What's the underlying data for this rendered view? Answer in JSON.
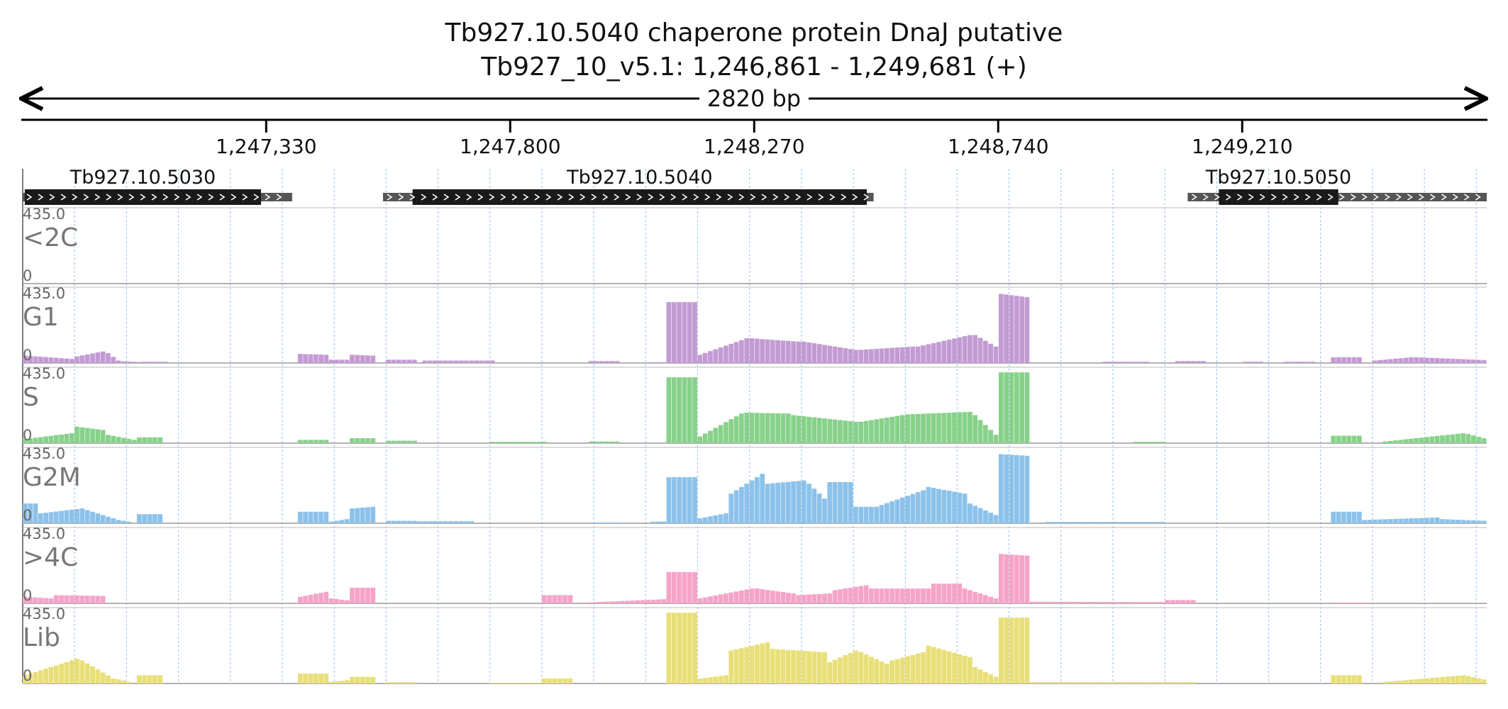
{
  "header": {
    "title": "Tb927.10.5040  chaperone protein DnaJ  putative",
    "location": "Tb927_10_v5.1: 1,246,861 - 1,249,681 (+)",
    "span_label": "2820 bp"
  },
  "axis": {
    "start": 1246861,
    "end": 1249681,
    "ticks": [
      {
        "value": 1247330,
        "label": "1,247,330"
      },
      {
        "value": 1247800,
        "label": "1,247,800"
      },
      {
        "value": 1248270,
        "label": "1,248,270"
      },
      {
        "value": 1248740,
        "label": "1,248,740"
      },
      {
        "value": 1249210,
        "label": "1,249,210"
      }
    ]
  },
  "genes": [
    {
      "name": "Tb927.10.5030",
      "utr": [
        1246861,
        1247380
      ],
      "cds": [
        1246865,
        1247320
      ],
      "strand": "+"
    },
    {
      "name": "Tb927.10.5040",
      "utr": [
        1247555,
        1248500
      ],
      "cds": [
        1247612,
        1248487
      ],
      "strand": "+"
    },
    {
      "name": "Tb927.10.5050",
      "utr": [
        1249105,
        1249681
      ],
      "cds": [
        1249165,
        1249395
      ],
      "strand": "+"
    }
  ],
  "colors": {
    "<2C": "#c8a2c8",
    "G1": "#c39bd3",
    "S": "#88d18a",
    "G2M": "#8cc2ea",
    "4C": "#f5a3c7",
    "Lib": "#e8df78",
    "gene": "#1a1a1a",
    "utr": "#555555",
    "grid": "#a9c7ea"
  },
  "chart_data": {
    "type": "area",
    "x_unit": "bp",
    "ylim": [
      0,
      435.0
    ],
    "bin_bp": 10,
    "tracks": [
      {
        "name": "<2C",
        "ymax_label": "435.0",
        "ymin_label": "0",
        "segments": []
      },
      {
        "name": "G1",
        "ymax_label": "435.0",
        "ymin_label": "0",
        "segments": [
          {
            "x0": 1246861,
            "x1": 1246961,
            "y0": 45,
            "y1": 25
          },
          {
            "x0": 1246961,
            "x1": 1247021,
            "y0": 40,
            "y1": 70
          },
          {
            "x0": 1247021,
            "x1": 1247051,
            "y0": 60,
            "y1": 15
          },
          {
            "x0": 1247051,
            "x1": 1247101,
            "y0": 10,
            "y1": 5
          },
          {
            "x0": 1247091,
            "x1": 1247141,
            "y0": 8,
            "y1": 8
          },
          {
            "x0": 1247391,
            "x1": 1247451,
            "y0": 55,
            "y1": 50
          },
          {
            "x0": 1247451,
            "x1": 1247491,
            "y0": 20,
            "y1": 20
          },
          {
            "x0": 1247491,
            "x1": 1247541,
            "y0": 50,
            "y1": 45
          },
          {
            "x0": 1247561,
            "x1": 1247621,
            "y0": 20,
            "y1": 20
          },
          {
            "x0": 1247631,
            "x1": 1247771,
            "y0": 15,
            "y1": 15
          },
          {
            "x0": 1247951,
            "x1": 1248011,
            "y0": 12,
            "y1": 12
          },
          {
            "x0": 1248071,
            "x1": 1248101,
            "y0": 5,
            "y1": 5
          },
          {
            "x0": 1248101,
            "x1": 1248161,
            "y0": 370,
            "y1": 370
          },
          {
            "x0": 1248161,
            "x1": 1248261,
            "y0": 50,
            "y1": 150
          },
          {
            "x0": 1248261,
            "x1": 1248361,
            "y0": 150,
            "y1": 130
          },
          {
            "x0": 1248361,
            "x1": 1248471,
            "y0": 130,
            "y1": 80
          },
          {
            "x0": 1248471,
            "x1": 1248581,
            "y0": 80,
            "y1": 100
          },
          {
            "x0": 1248581,
            "x1": 1248691,
            "y0": 100,
            "y1": 170
          },
          {
            "x0": 1248691,
            "x1": 1248741,
            "y0": 170,
            "y1": 100
          },
          {
            "x0": 1248741,
            "x1": 1248801,
            "y0": 420,
            "y1": 400
          },
          {
            "x0": 1248941,
            "x1": 1249031,
            "y0": 8,
            "y1": 8
          },
          {
            "x0": 1249081,
            "x1": 1249141,
            "y0": 12,
            "y1": 12
          },
          {
            "x0": 1249211,
            "x1": 1249251,
            "y0": 8,
            "y1": 8
          },
          {
            "x0": 1249291,
            "x1": 1249351,
            "y0": 8,
            "y1": 8
          },
          {
            "x0": 1249381,
            "x1": 1249441,
            "y0": 35,
            "y1": 35
          },
          {
            "x0": 1249461,
            "x1": 1249541,
            "y0": 15,
            "y1": 35
          },
          {
            "x0": 1249541,
            "x1": 1249681,
            "y0": 35,
            "y1": 18
          }
        ]
      },
      {
        "name": "S",
        "ymax_label": "435.0",
        "ymin_label": "0",
        "segments": [
          {
            "x0": 1246861,
            "x1": 1246961,
            "y0": 25,
            "y1": 60
          },
          {
            "x0": 1246961,
            "x1": 1247021,
            "y0": 100,
            "y1": 80
          },
          {
            "x0": 1247021,
            "x1": 1247081,
            "y0": 50,
            "y1": 20
          },
          {
            "x0": 1247081,
            "x1": 1247131,
            "y0": 35,
            "y1": 35
          },
          {
            "x0": 1247391,
            "x1": 1247451,
            "y0": 20,
            "y1": 20
          },
          {
            "x0": 1247491,
            "x1": 1247541,
            "y0": 30,
            "y1": 30
          },
          {
            "x0": 1247561,
            "x1": 1247621,
            "y0": 15,
            "y1": 15
          },
          {
            "x0": 1247761,
            "x1": 1247871,
            "y0": 8,
            "y1": 8
          },
          {
            "x0": 1247951,
            "x1": 1248011,
            "y0": 10,
            "y1": 10
          },
          {
            "x0": 1248101,
            "x1": 1248161,
            "y0": 400,
            "y1": 400
          },
          {
            "x0": 1248161,
            "x1": 1248251,
            "y0": 40,
            "y1": 180
          },
          {
            "x0": 1248251,
            "x1": 1248341,
            "y0": 185,
            "y1": 180
          },
          {
            "x0": 1248341,
            "x1": 1248471,
            "y0": 170,
            "y1": 130
          },
          {
            "x0": 1248471,
            "x1": 1248561,
            "y0": 130,
            "y1": 170
          },
          {
            "x0": 1248561,
            "x1": 1248691,
            "y0": 175,
            "y1": 190
          },
          {
            "x0": 1248691,
            "x1": 1248741,
            "y0": 170,
            "y1": 50
          },
          {
            "x0": 1248741,
            "x1": 1248801,
            "y0": 430,
            "y1": 430
          },
          {
            "x0": 1249001,
            "x1": 1249061,
            "y0": 8,
            "y1": 8
          },
          {
            "x0": 1249381,
            "x1": 1249441,
            "y0": 45,
            "y1": 45
          },
          {
            "x0": 1249481,
            "x1": 1249641,
            "y0": 10,
            "y1": 60
          },
          {
            "x0": 1249641,
            "x1": 1249681,
            "y0": 55,
            "y1": 30
          }
        ]
      },
      {
        "name": "G2M",
        "ymax_label": "435.0",
        "ymin_label": "0",
        "segments": [
          {
            "x0": 1246861,
            "x1": 1246891,
            "y0": 120,
            "y1": 120
          },
          {
            "x0": 1246891,
            "x1": 1246981,
            "y0": 60,
            "y1": 90
          },
          {
            "x0": 1246981,
            "x1": 1247041,
            "y0": 80,
            "y1": 30
          },
          {
            "x0": 1247041,
            "x1": 1247071,
            "y0": 20,
            "y1": 10
          },
          {
            "x0": 1247081,
            "x1": 1247131,
            "y0": 55,
            "y1": 55
          },
          {
            "x0": 1247391,
            "x1": 1247451,
            "y0": 70,
            "y1": 70
          },
          {
            "x0": 1247451,
            "x1": 1247491,
            "y0": 10,
            "y1": 25
          },
          {
            "x0": 1247491,
            "x1": 1247541,
            "y0": 90,
            "y1": 100
          },
          {
            "x0": 1247561,
            "x1": 1247621,
            "y0": 15,
            "y1": 15
          },
          {
            "x0": 1247621,
            "x1": 1247731,
            "y0": 12,
            "y1": 12
          },
          {
            "x0": 1247961,
            "x1": 1248011,
            "y0": 5,
            "y1": 5
          },
          {
            "x0": 1248071,
            "x1": 1248101,
            "y0": 10,
            "y1": 10
          },
          {
            "x0": 1248101,
            "x1": 1248161,
            "y0": 280,
            "y1": 280
          },
          {
            "x0": 1248161,
            "x1": 1248221,
            "y0": 30,
            "y1": 60
          },
          {
            "x0": 1248221,
            "x1": 1248291,
            "y0": 180,
            "y1": 300
          },
          {
            "x0": 1248291,
            "x1": 1248371,
            "y0": 240,
            "y1": 260
          },
          {
            "x0": 1248371,
            "x1": 1248411,
            "y0": 240,
            "y1": 150
          },
          {
            "x0": 1248411,
            "x1": 1248461,
            "y0": 250,
            "y1": 250
          },
          {
            "x0": 1248461,
            "x1": 1248501,
            "y0": 100,
            "y1": 100
          },
          {
            "x0": 1248501,
            "x1": 1248601,
            "y0": 100,
            "y1": 200
          },
          {
            "x0": 1248601,
            "x1": 1248681,
            "y0": 220,
            "y1": 180
          },
          {
            "x0": 1248681,
            "x1": 1248741,
            "y0": 120,
            "y1": 50
          },
          {
            "x0": 1248741,
            "x1": 1248801,
            "y0": 420,
            "y1": 410
          },
          {
            "x0": 1248831,
            "x1": 1249061,
            "y0": 8,
            "y1": 8
          },
          {
            "x0": 1249381,
            "x1": 1249441,
            "y0": 70,
            "y1": 70
          },
          {
            "x0": 1249441,
            "x1": 1249591,
            "y0": 20,
            "y1": 35
          },
          {
            "x0": 1249591,
            "x1": 1249681,
            "y0": 25,
            "y1": 15
          }
        ]
      },
      {
        "name": ">4C",
        "ymax_label": "435.0",
        "ymin_label": "0",
        "segments": [
          {
            "x0": 1246861,
            "x1": 1246921,
            "y0": 40,
            "y1": 30
          },
          {
            "x0": 1246921,
            "x1": 1247021,
            "y0": 50,
            "y1": 45
          },
          {
            "x0": 1247391,
            "x1": 1247451,
            "y0": 40,
            "y1": 70
          },
          {
            "x0": 1247451,
            "x1": 1247501,
            "y0": 30,
            "y1": 15
          },
          {
            "x0": 1247491,
            "x1": 1247541,
            "y0": 95,
            "y1": 95
          },
          {
            "x0": 1247861,
            "x1": 1247921,
            "y0": 50,
            "y1": 50
          },
          {
            "x0": 1247941,
            "x1": 1248101,
            "y0": 5,
            "y1": 25
          },
          {
            "x0": 1248101,
            "x1": 1248161,
            "y0": 190,
            "y1": 190
          },
          {
            "x0": 1248161,
            "x1": 1248271,
            "y0": 30,
            "y1": 90
          },
          {
            "x0": 1248271,
            "x1": 1248351,
            "y0": 90,
            "y1": 60
          },
          {
            "x0": 1248351,
            "x1": 1248421,
            "y0": 50,
            "y1": 60
          },
          {
            "x0": 1248421,
            "x1": 1248491,
            "y0": 80,
            "y1": 110
          },
          {
            "x0": 1248491,
            "x1": 1248611,
            "y0": 90,
            "y1": 90
          },
          {
            "x0": 1248611,
            "x1": 1248671,
            "y0": 120,
            "y1": 120
          },
          {
            "x0": 1248671,
            "x1": 1248741,
            "y0": 90,
            "y1": 30
          },
          {
            "x0": 1248741,
            "x1": 1248801,
            "y0": 300,
            "y1": 290
          },
          {
            "x0": 1248801,
            "x1": 1249061,
            "y0": 10,
            "y1": 8
          },
          {
            "x0": 1249061,
            "x1": 1249121,
            "y0": 20,
            "y1": 20
          },
          {
            "x0": 1249391,
            "x1": 1249451,
            "y0": 5,
            "y1": 5
          }
        ]
      },
      {
        "name": "Lib",
        "ymax_label": "435.0",
        "ymin_label": "0",
        "segments": [
          {
            "x0": 1246861,
            "x1": 1246971,
            "y0": 50,
            "y1": 150
          },
          {
            "x0": 1246971,
            "x1": 1247041,
            "y0": 140,
            "y1": 30
          },
          {
            "x0": 1247041,
            "x1": 1247071,
            "y0": 25,
            "y1": 10
          },
          {
            "x0": 1247081,
            "x1": 1247131,
            "y0": 50,
            "y1": 50
          },
          {
            "x0": 1247391,
            "x1": 1247451,
            "y0": 60,
            "y1": 60
          },
          {
            "x0": 1247451,
            "x1": 1247491,
            "y0": 10,
            "y1": 20
          },
          {
            "x0": 1247491,
            "x1": 1247541,
            "y0": 40,
            "y1": 40
          },
          {
            "x0": 1247561,
            "x1": 1247621,
            "y0": 8,
            "y1": 8
          },
          {
            "x0": 1247761,
            "x1": 1247861,
            "y0": 5,
            "y1": 5
          },
          {
            "x0": 1247861,
            "x1": 1247921,
            "y0": 30,
            "y1": 30
          },
          {
            "x0": 1248101,
            "x1": 1248161,
            "y0": 430,
            "y1": 430
          },
          {
            "x0": 1248161,
            "x1": 1248221,
            "y0": 30,
            "y1": 50
          },
          {
            "x0": 1248221,
            "x1": 1248301,
            "y0": 200,
            "y1": 250
          },
          {
            "x0": 1248301,
            "x1": 1248411,
            "y0": 210,
            "y1": 190
          },
          {
            "x0": 1248411,
            "x1": 1248471,
            "y0": 130,
            "y1": 200
          },
          {
            "x0": 1248471,
            "x1": 1248531,
            "y0": 190,
            "y1": 120
          },
          {
            "x0": 1248531,
            "x1": 1248601,
            "y0": 140,
            "y1": 190
          },
          {
            "x0": 1248601,
            "x1": 1248691,
            "y0": 230,
            "y1": 160
          },
          {
            "x0": 1248691,
            "x1": 1248741,
            "y0": 100,
            "y1": 40
          },
          {
            "x0": 1248741,
            "x1": 1248801,
            "y0": 400,
            "y1": 400
          },
          {
            "x0": 1248801,
            "x1": 1249121,
            "y0": 8,
            "y1": 8
          },
          {
            "x0": 1249381,
            "x1": 1249441,
            "y0": 50,
            "y1": 50
          },
          {
            "x0": 1249481,
            "x1": 1249641,
            "y0": 10,
            "y1": 50
          },
          {
            "x0": 1249641,
            "x1": 1249681,
            "y0": 45,
            "y1": 25
          }
        ]
      }
    ]
  }
}
